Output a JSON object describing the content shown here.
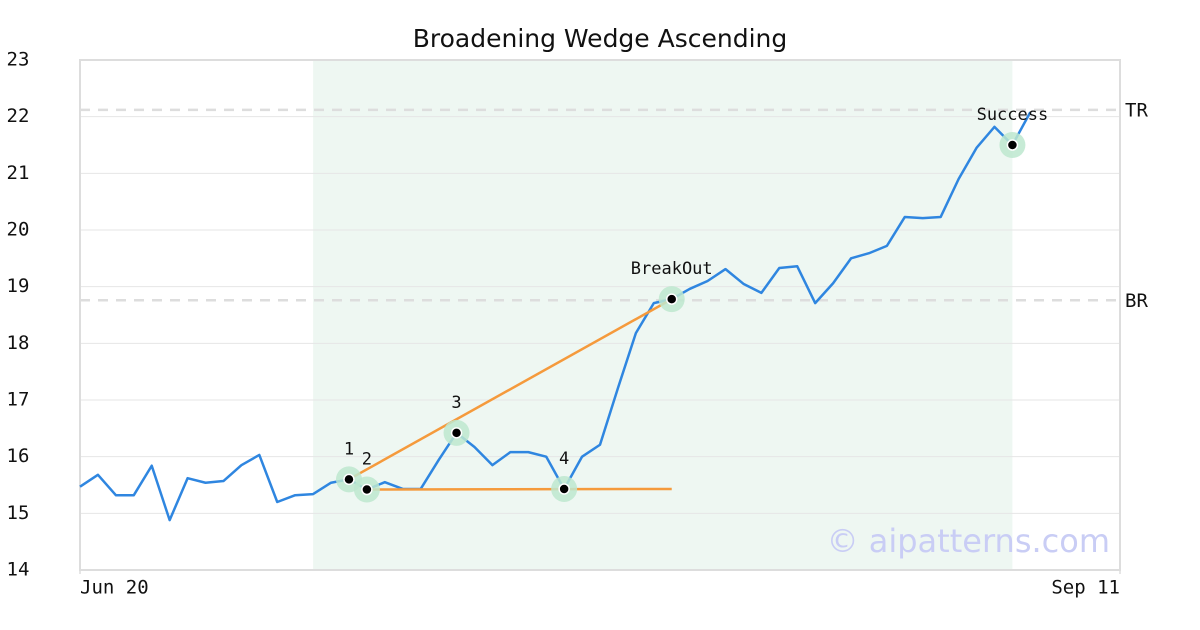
{
  "chart_data": {
    "type": "line",
    "title": "Broadening Wedge Ascending",
    "x": [
      0,
      1,
      2,
      3,
      4,
      5,
      6,
      7,
      8,
      9,
      10,
      11,
      12,
      13,
      14,
      15,
      16,
      17,
      18,
      19,
      20,
      21,
      22,
      23,
      24,
      25,
      26,
      27,
      28,
      29,
      30,
      31,
      32,
      33,
      34,
      35,
      36,
      37,
      38,
      39,
      40,
      41,
      42,
      43,
      44,
      45,
      46,
      47,
      48,
      49,
      50,
      51,
      52,
      53
    ],
    "series": [
      {
        "color": "#2f86e0",
        "values": [
          15.47,
          15.68,
          15.32,
          15.32,
          15.84,
          14.88,
          15.62,
          15.54,
          15.57,
          15.85,
          16.03,
          15.2,
          15.32,
          15.34,
          15.54,
          15.6,
          15.42,
          15.55,
          15.43,
          15.43,
          15.94,
          16.42,
          16.17,
          15.85,
          16.08,
          16.08,
          16.0,
          15.43,
          16.0,
          16.21,
          17.21,
          18.18,
          18.71,
          18.78,
          18.96,
          19.1,
          19.31,
          19.05,
          18.89,
          19.33,
          19.36,
          18.71,
          19.06,
          19.5,
          19.59,
          19.72,
          20.23,
          20.21,
          20.23,
          20.9,
          21.45,
          21.82,
          21.5,
          22.08
        ]
      }
    ],
    "xlim": [
      0,
      58
    ],
    "xticks": [
      {
        "value": 0,
        "label": "Jun 20"
      },
      {
        "value": 58,
        "label": "Sep 11"
      }
    ],
    "ylim": [
      14,
      23
    ],
    "yticks": [
      14,
      15,
      16,
      17,
      18,
      19,
      20,
      21,
      22,
      23
    ],
    "grid": true,
    "shaded_range": [
      13,
      52
    ],
    "levels": [
      {
        "label": "TR",
        "value": 22.12
      },
      {
        "label": "BR",
        "value": 18.76
      }
    ],
    "trendlines": [
      {
        "color": "#f59a3c",
        "x": [
          15,
          33
        ],
        "y": [
          15.6,
          18.78
        ]
      },
      {
        "color": "#f59a3c",
        "x": [
          16,
          33
        ],
        "y": [
          15.42,
          15.43
        ]
      }
    ],
    "points": [
      {
        "label": "1",
        "x": 15,
        "y": 15.6
      },
      {
        "label": "2",
        "x": 16,
        "y": 15.42
      },
      {
        "label": "3",
        "x": 21,
        "y": 16.42
      },
      {
        "label": "4",
        "x": 27,
        "y": 15.43
      },
      {
        "label": "BreakOut",
        "x": 33,
        "y": 18.78
      },
      {
        "label": "Success",
        "x": 52,
        "y": 21.5
      }
    ],
    "watermark": "© aipatterns.com"
  }
}
